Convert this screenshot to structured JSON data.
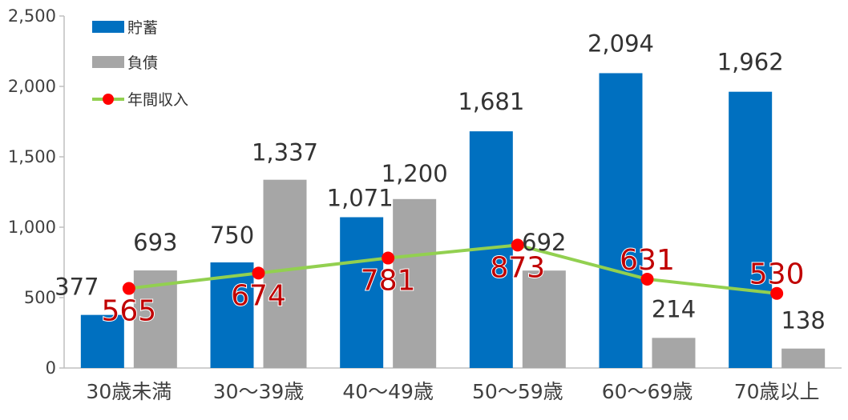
{
  "chart_data": {
    "type": "bar",
    "categories": [
      "30歳未満",
      "30〜39歳",
      "40〜49歳",
      "50〜59歳",
      "60〜69歳",
      "70歳以上"
    ],
    "series": [
      {
        "name": "貯蓄",
        "type": "bar",
        "color": "#0070c0",
        "values": [
          377,
          750,
          1071,
          1681,
          2094,
          1962
        ]
      },
      {
        "name": "負債",
        "type": "bar",
        "color": "#a6a6a6",
        "values": [
          693,
          1337,
          1200,
          692,
          214,
          138
        ]
      },
      {
        "name": "年間収入",
        "type": "line",
        "color": "#92d050",
        "marker_color": "#ff0000",
        "values": [
          565,
          674,
          781,
          873,
          631,
          530
        ]
      }
    ],
    "y_ticks": [
      "0",
      "500",
      "1,000",
      "1,500",
      "2,000",
      "2,500"
    ],
    "ylim": [
      0,
      2500
    ],
    "title": "",
    "xlabel": "",
    "ylabel": "",
    "legend_position": "top-left",
    "grid": false
  }
}
